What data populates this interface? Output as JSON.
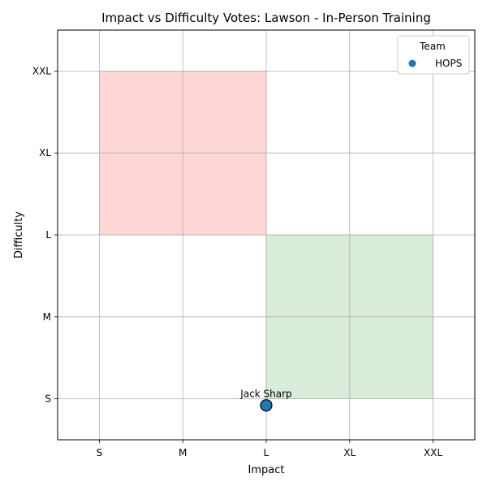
{
  "chart_data": {
    "type": "scatter",
    "title": "Impact vs Difficulty Votes: Lawson - In-Person Training",
    "xlabel": "Impact",
    "ylabel": "Difficulty",
    "x_categories": [
      "S",
      "M",
      "L",
      "XL",
      "XXL"
    ],
    "y_categories": [
      "S",
      "M",
      "L",
      "XL",
      "XXL"
    ],
    "xlim": [
      -0.5,
      4.5
    ],
    "ylim": [
      -0.5,
      4.5
    ],
    "grid": true,
    "regions": [
      {
        "x": [
          0,
          2
        ],
        "y": [
          2,
          4
        ],
        "color": "#ffd6d6"
      },
      {
        "x": [
          2,
          4
        ],
        "y": [
          0,
          2
        ],
        "color": "#d9ecd9"
      }
    ],
    "series": [
      {
        "name": "HOPS",
        "color": "#1f77b4",
        "points": [
          {
            "x": 2,
            "y": -0.08,
            "label": "Jack Sharp"
          }
        ]
      }
    ],
    "legend": {
      "title": "Team",
      "placement": "top-right"
    }
  }
}
